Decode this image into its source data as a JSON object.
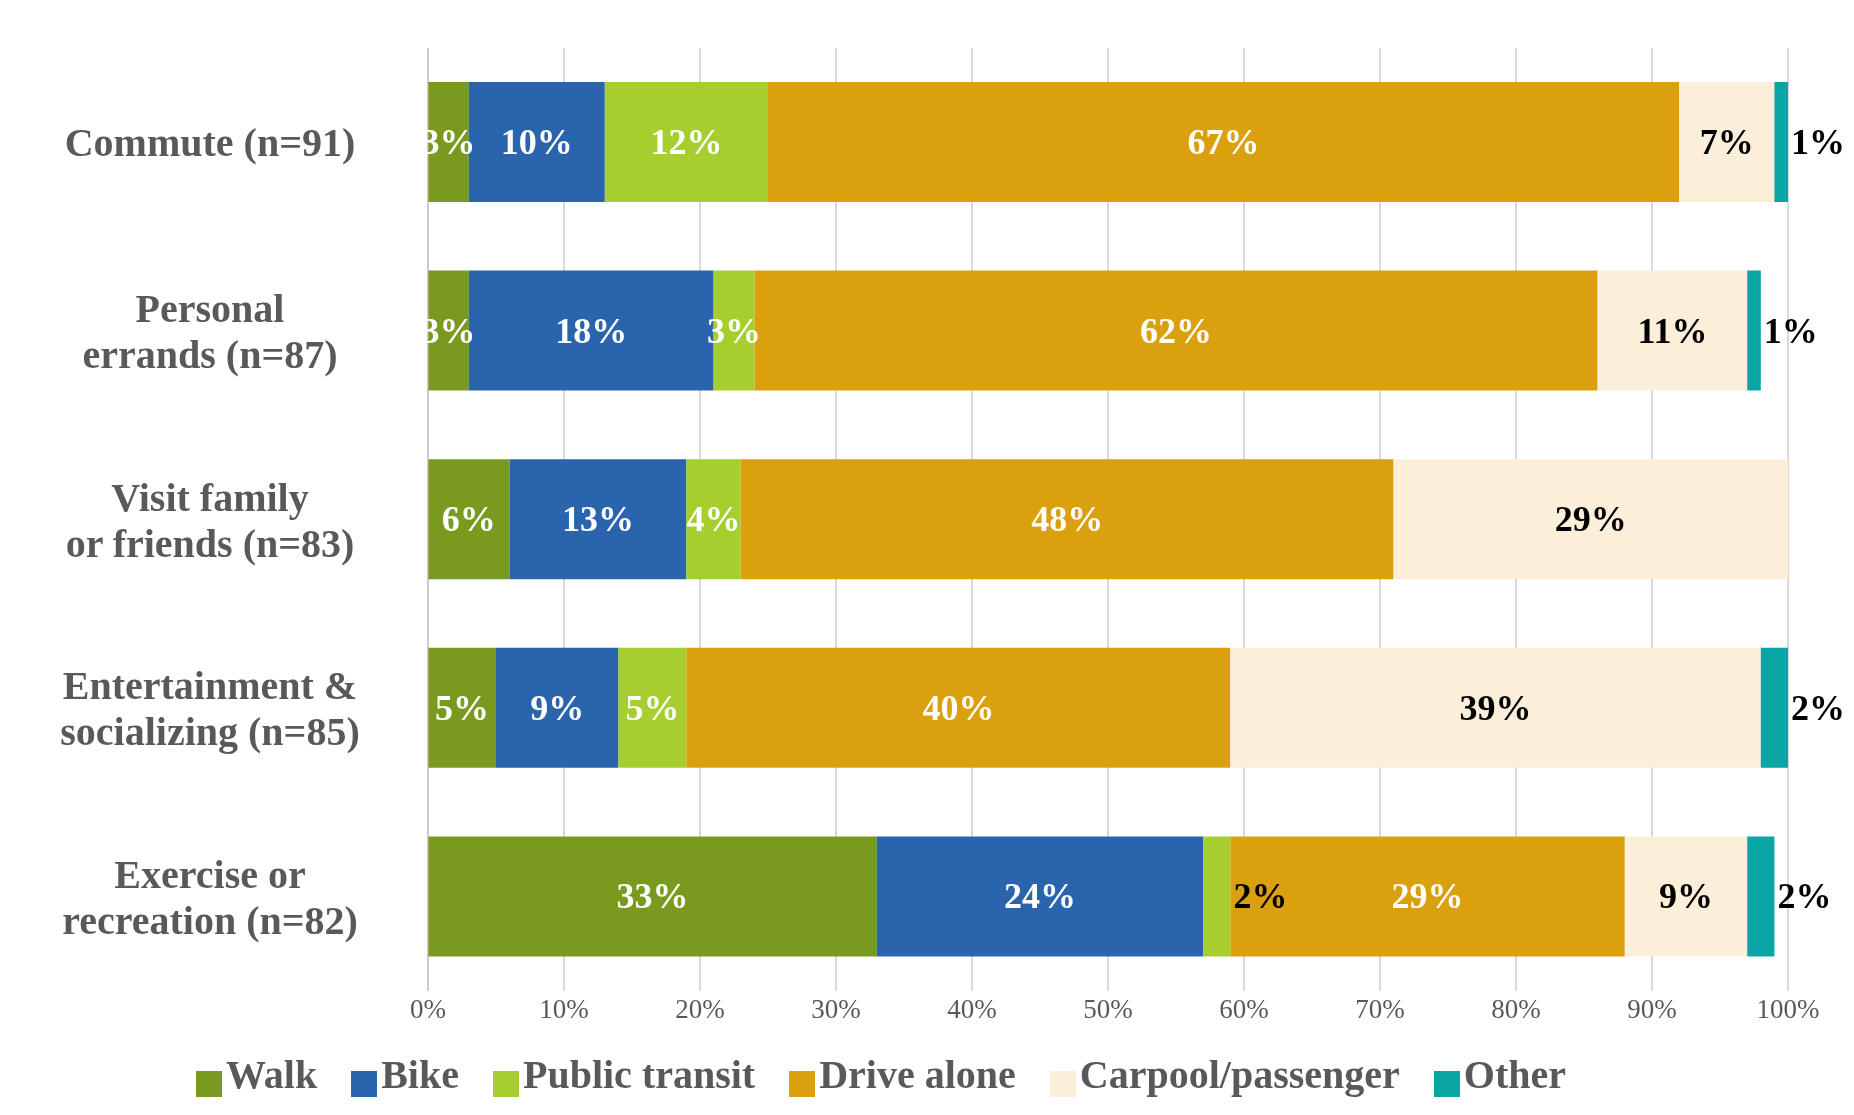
{
  "chart_data": {
    "type": "bar",
    "orientation": "horizontal",
    "stacked": true,
    "categories": [
      "Commute (n=91)",
      "Personal errands (n=87)",
      "Visit family or friends (n=83)",
      "Entertainment & socializing (n=85)",
      "Exercise or recreation (n=82)"
    ],
    "series": [
      {
        "name": "Walk",
        "color": "#7a9a1f",
        "values": [
          3,
          3,
          6,
          5,
          33
        ],
        "value_labels": [
          "3%",
          "3%",
          "6%",
          "5%",
          "33%"
        ]
      },
      {
        "name": "Bike",
        "color": "#2a64ad",
        "values": [
          10,
          18,
          13,
          9,
          24
        ],
        "value_labels": [
          "10%",
          "18%",
          "13%",
          "9%",
          "24%"
        ]
      },
      {
        "name": "Public transit",
        "color": "#a6ce2f",
        "values": [
          12,
          3,
          4,
          5,
          2
        ],
        "value_labels": [
          "12%",
          "3%",
          "4%",
          "5%",
          "2%"
        ]
      },
      {
        "name": "Drive alone",
        "color": "#dba00d",
        "values": [
          67,
          62,
          48,
          40,
          29
        ],
        "value_labels": [
          "67%",
          "62%",
          "48%",
          "40%",
          "29%"
        ]
      },
      {
        "name": "Carpool/passenger",
        "color": "#fcefd9",
        "values": [
          7,
          11,
          29,
          39,
          9
        ],
        "value_labels": [
          "7%",
          "11%",
          "29%",
          "39%",
          "9%"
        ]
      },
      {
        "name": "Other",
        "color": "#0aa5a5",
        "values": [
          1,
          1,
          null,
          2,
          2
        ],
        "value_labels": [
          "1%",
          "1%",
          null,
          "2%",
          "2%"
        ]
      }
    ],
    "xlim": [
      0,
      100
    ],
    "xticks": [
      {
        "value": 0,
        "label": "0%"
      },
      {
        "value": 10,
        "label": "10%"
      },
      {
        "value": 20,
        "label": "20%"
      },
      {
        "value": 30,
        "label": "30%"
      },
      {
        "value": 40,
        "label": "40%"
      },
      {
        "value": 50,
        "label": "50%"
      },
      {
        "value": 60,
        "label": "60%"
      },
      {
        "value": 70,
        "label": "70%"
      },
      {
        "value": 80,
        "label": "80%"
      },
      {
        "value": 90,
        "label": "90%"
      },
      {
        "value": 100,
        "label": "100%"
      }
    ],
    "grid": "x",
    "legend": "bottom"
  }
}
